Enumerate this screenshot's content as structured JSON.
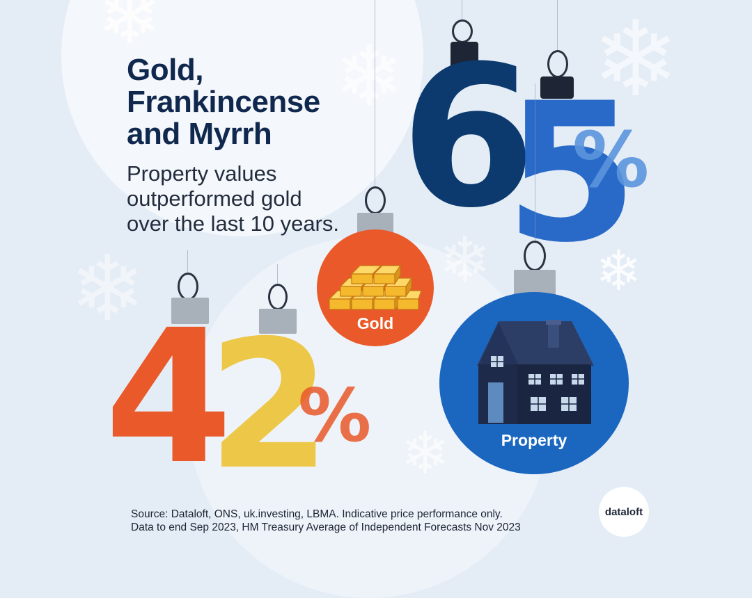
{
  "title": "Gold,\nFrankincense\nand Myrrh",
  "subtitle": "Property values outperformed gold over the last 10 years.",
  "stats": {
    "property": {
      "d1": "6",
      "d2": "5",
      "pct": "%"
    },
    "gold": {
      "d1": "4",
      "d2": "2",
      "pct": "%"
    }
  },
  "ornaments": {
    "gold_label": "Gold",
    "property_label": "Property"
  },
  "source": {
    "line1": "Source: Dataloft, ONS, uk.investing, LBMA. Indicative price performance only.",
    "line2": "Data to end Sep 2023, HM Treasury Average of Independent Forecasts Nov 2023"
  },
  "logo": "dataloft",
  "colors": {
    "background": "#e4ecf5",
    "navy": "#0c3a6e",
    "blue": "#1f63c6",
    "light_blue": "#5b95dd",
    "orange": "#e9592a",
    "yellow": "#ecc53f",
    "gold_bar": "#f5b92e",
    "property_ball": "#1b67c0"
  },
  "icons": [
    "snowflake-icon",
    "gold-bars-icon",
    "house-icon"
  ]
}
